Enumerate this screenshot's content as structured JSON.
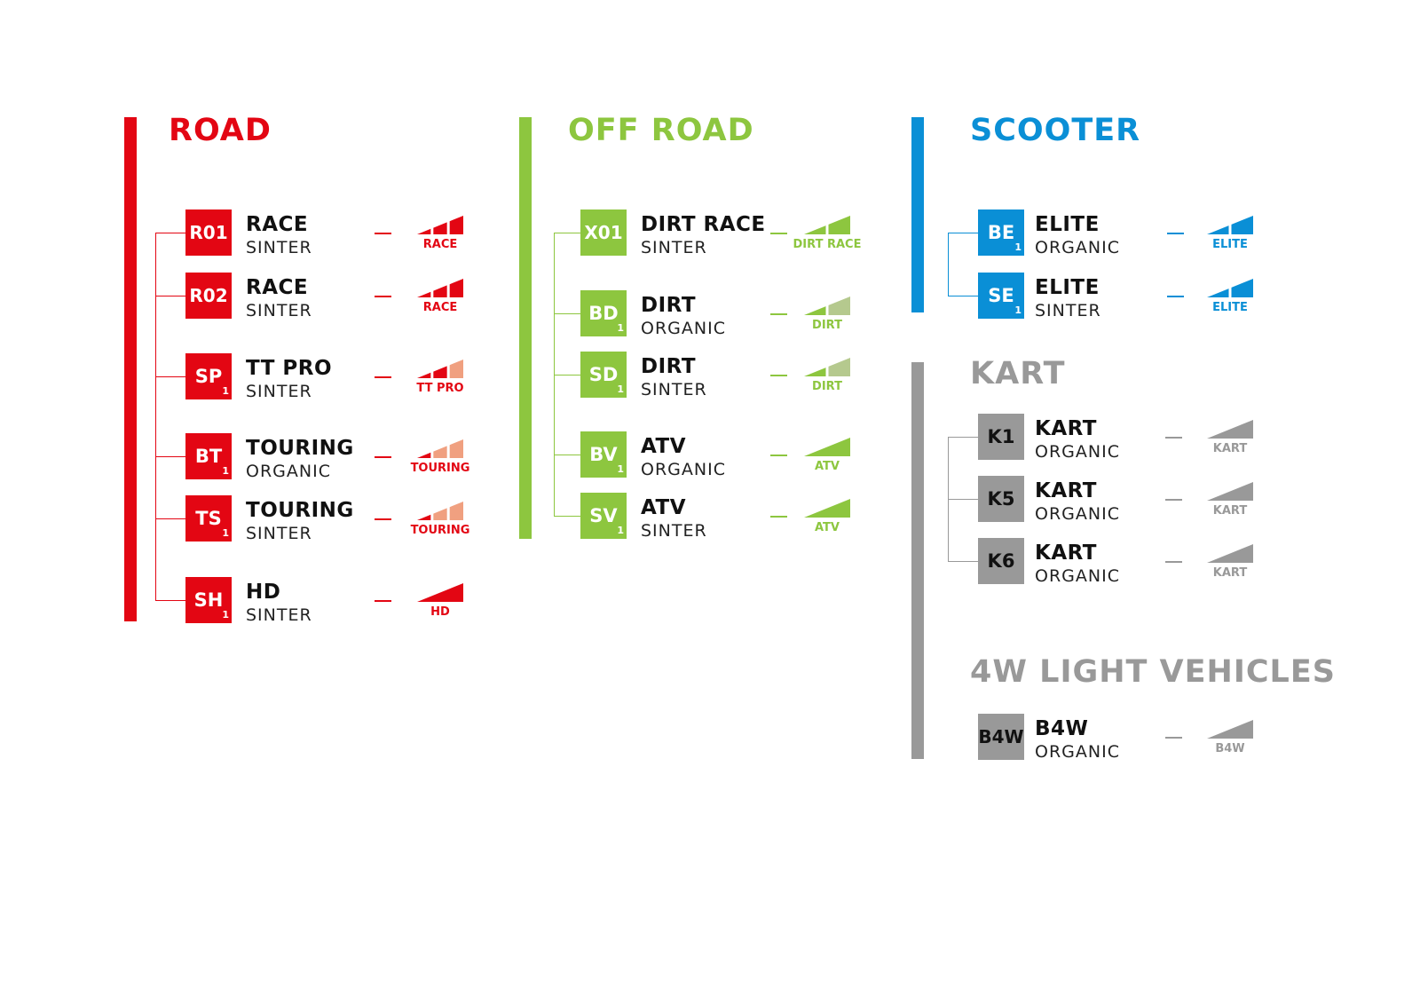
{
  "colors": {
    "road": "#e30613",
    "road_light": "#f0a080",
    "offroad": "#8dc63f",
    "offroad_light": "#b5c98e",
    "scooter": "#0a8fd6",
    "kart": "#999999",
    "text": "#111111"
  },
  "sections": [
    {
      "id": "road",
      "title": "ROAD",
      "color": "#e30613",
      "light": "#f0a080",
      "items": [
        {
          "code": "R01",
          "sub": "",
          "title": "RACE",
          "material": "SINTER",
          "level": "RACE",
          "segments": 3,
          "filled": 3
        },
        {
          "code": "R02",
          "sub": "",
          "title": "RACE",
          "material": "SINTER",
          "level": "RACE",
          "segments": 3,
          "filled": 3
        },
        {
          "code": "SP",
          "sub": "1",
          "title": "TT PRO",
          "material": "SINTER",
          "level": "TT PRO",
          "segments": 3,
          "filled": 2
        },
        {
          "code": "BT",
          "sub": "1",
          "title": "TOURING",
          "material": "ORGANIC",
          "level": "TOURING",
          "segments": 3,
          "filled": 1
        },
        {
          "code": "TS",
          "sub": "1",
          "title": "TOURING",
          "material": "SINTER",
          "level": "TOURING",
          "segments": 3,
          "filled": 1
        },
        {
          "code": "SH",
          "sub": "1",
          "title": "HD",
          "material": "SINTER",
          "level": "HD",
          "segments": 1,
          "filled": 1
        }
      ]
    },
    {
      "id": "offroad",
      "title": "OFF ROAD",
      "color": "#8dc63f",
      "light": "#b5c98e",
      "items": [
        {
          "code": "X01",
          "sub": "",
          "title": "DIRT RACE",
          "material": "SINTER",
          "level": "DIRT RACE",
          "segments": 2,
          "filled": 2
        },
        {
          "code": "BD",
          "sub": "1",
          "title": "DIRT",
          "material": "ORGANIC",
          "level": "DIRT",
          "segments": 2,
          "filled": 1
        },
        {
          "code": "SD",
          "sub": "1",
          "title": "DIRT",
          "material": "SINTER",
          "level": "DIRT",
          "segments": 2,
          "filled": 1
        },
        {
          "code": "BV",
          "sub": "1",
          "title": "ATV",
          "material": "ORGANIC",
          "level": "ATV",
          "segments": 1,
          "filled": 1
        },
        {
          "code": "SV",
          "sub": "1",
          "title": "ATV",
          "material": "SINTER",
          "level": "ATV",
          "segments": 1,
          "filled": 1
        }
      ]
    },
    {
      "id": "scooter",
      "title": "SCOOTER",
      "color": "#0a8fd6",
      "light": "#0a8fd6",
      "items": [
        {
          "code": "BE",
          "sub": "1",
          "title": "ELITE",
          "material": "ORGANIC",
          "level": "ELITE",
          "segments": 2,
          "filled": 2
        },
        {
          "code": "SE",
          "sub": "1",
          "title": "ELITE",
          "material": "SINTER",
          "level": "ELITE",
          "segments": 2,
          "filled": 2
        }
      ]
    },
    {
      "id": "kart",
      "title": "KART",
      "color": "#999999",
      "light": "#999999",
      "items": [
        {
          "code": "K1",
          "sub": "",
          "title": "KART",
          "material": "ORGANIC",
          "level": "KART",
          "segments": 1,
          "filled": 1
        },
        {
          "code": "K5",
          "sub": "",
          "title": "KART",
          "material": "ORGANIC",
          "level": "KART",
          "segments": 1,
          "filled": 1
        },
        {
          "code": "K6",
          "sub": "",
          "title": "KART",
          "material": "ORGANIC",
          "level": "KART",
          "segments": 1,
          "filled": 1
        }
      ]
    },
    {
      "id": "light4w",
      "title": "4W LIGHT VEHICLES",
      "color": "#999999",
      "light": "#999999",
      "items": [
        {
          "code": "B4W",
          "sub": "",
          "title": "B4W",
          "material": "ORGANIC",
          "level": "B4W",
          "segments": 1,
          "filled": 1
        }
      ]
    }
  ]
}
